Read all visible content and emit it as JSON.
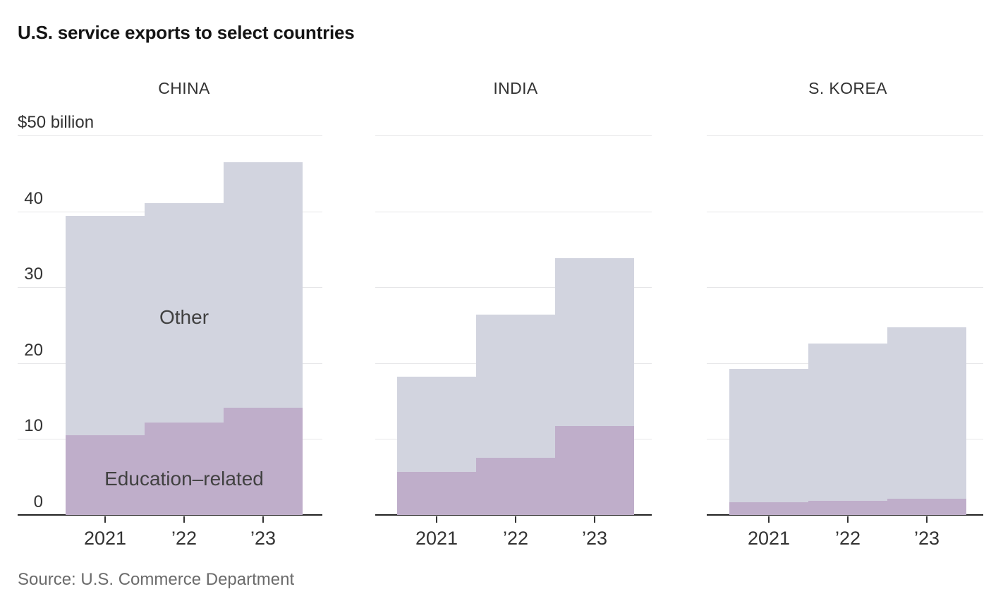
{
  "title": "U.S. service exports to select countries",
  "source_note": "Source: U.S. Commerce Department",
  "y_axis": {
    "unit_label": "$50 billion",
    "tick_labels": [
      "40",
      "30",
      "20",
      "10",
      "0"
    ],
    "tick_values": [
      40,
      30,
      20,
      10,
      0
    ]
  },
  "x_tick_labels": [
    "2021",
    "’22",
    "’23"
  ],
  "series_labels": {
    "other": "Other",
    "education": "Education–related"
  },
  "colors": {
    "other_fill": "#d2d4df",
    "education_fill": "#bfaeca",
    "axis_line": "#222222",
    "tick_mark": "#333333",
    "gridline": "#e6e6e8",
    "title_text": "#141414",
    "label_text": "#333333",
    "annotation_text": "#414141",
    "source_text": "#6b6b6b"
  },
  "chart_data": {
    "type": "bar",
    "stacked": true,
    "title": "U.S. service exports to select countries",
    "unit": "$ billion",
    "ylim": [
      0,
      50
    ],
    "gridline_values": [
      0,
      10,
      20,
      30,
      40,
      50
    ],
    "grid": true,
    "legend_position": "in-plot annotations on first panel",
    "categories": [
      "2021",
      "2022",
      "2023"
    ],
    "panels": [
      {
        "label": "CHINA",
        "series": [
          {
            "name": "Education-related",
            "values": [
              10.5,
              12.2,
              14.1
            ]
          },
          {
            "name": "Other",
            "values": [
              28.9,
              28.9,
              32.4
            ]
          }
        ],
        "totals": [
          39.4,
          41.1,
          46.5
        ]
      },
      {
        "label": "INDIA",
        "series": [
          {
            "name": "Education-related",
            "values": [
              5.7,
              7.5,
              11.7
            ]
          },
          {
            "name": "Other",
            "values": [
              12.5,
              18.9,
              22.1
            ]
          }
        ],
        "totals": [
          18.2,
          26.4,
          33.8
        ]
      },
      {
        "label": "S. KOREA",
        "series": [
          {
            "name": "Education-related",
            "values": [
              1.7,
              1.9,
              2.1
            ]
          },
          {
            "name": "Other",
            "values": [
              17.5,
              20.7,
              22.6
            ]
          }
        ],
        "totals": [
          19.2,
          22.6,
          24.7
        ]
      }
    ]
  }
}
